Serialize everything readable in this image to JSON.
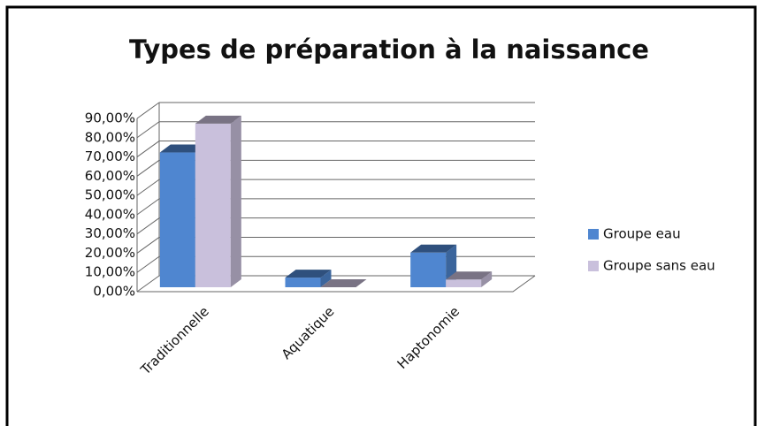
{
  "chart_data": {
    "type": "bar3d",
    "title": "Types de préparation à la naissance",
    "categories": [
      "Traditionnelle",
      "Aquatique",
      "Haptonomie"
    ],
    "series": [
      {
        "name": "Groupe eau",
        "color": "#4f86d0",
        "values": [
          70,
          5,
          18
        ]
      },
      {
        "name": "Groupe sans eau",
        "color": "#c9c0dc",
        "values": [
          85,
          0,
          4
        ]
      }
    ],
    "ylim": [
      0,
      90
    ],
    "yticks": [
      {
        "value": 0,
        "label": "0,00%"
      },
      {
        "value": 10,
        "label": "10,00%"
      },
      {
        "value": 20,
        "label": "20,00%"
      },
      {
        "value": 30,
        "label": "30,00%"
      },
      {
        "value": 40,
        "label": "40,00%"
      },
      {
        "value": 50,
        "label": "50,00%"
      },
      {
        "value": 60,
        "label": "60,00%"
      },
      {
        "value": 70,
        "label": "70,00%"
      },
      {
        "value": 80,
        "label": "80,00%"
      },
      {
        "value": 90,
        "label": "90,00%"
      }
    ],
    "grid": true,
    "legend": "right"
  }
}
